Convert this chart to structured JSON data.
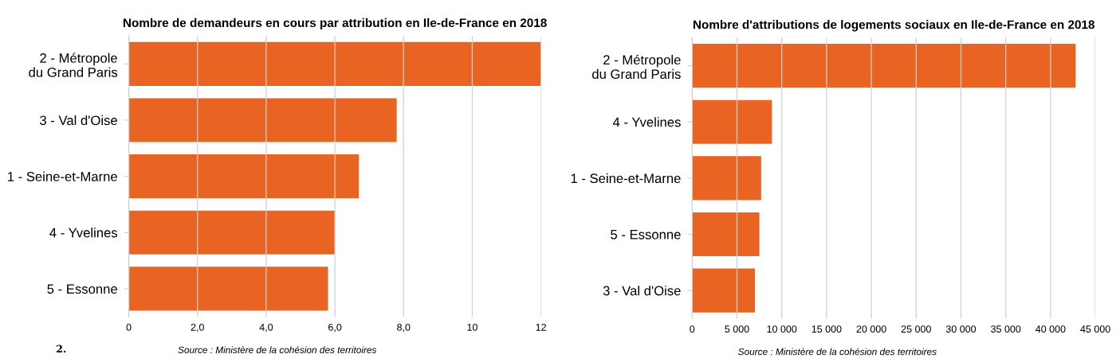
{
  "chart_data": [
    {
      "type": "bar",
      "orientation": "horizontal",
      "title": "Nombre de demandeurs en cours par attribution en Ile-de-France en 2018",
      "categories": [
        "2 - Métropole\ndu Grand Paris",
        "3 - Val d'Oise",
        "1 - Seine-et-Marne",
        "4 - Yvelines",
        "5 - Essonne"
      ],
      "values": [
        12.0,
        7.8,
        6.7,
        6.0,
        5.8
      ],
      "color": "#e96423",
      "xlim": [
        0,
        12
      ],
      "xticks": [
        0,
        {
          "value": 2,
          "label": "2,0"
        },
        {
          "value": 4,
          "label": "4,0"
        },
        {
          "value": 6,
          "label": "6,0"
        },
        {
          "value": 8,
          "label": "8,0"
        },
        10,
        12
      ],
      "grid": "x",
      "annotations": [
        "Source : Ministère de la cohésion des territoires",
        "2."
      ]
    },
    {
      "type": "bar",
      "orientation": "horizontal",
      "title": "Nombre d'attributions de logements sociaux en Ile-de-France en 2018",
      "categories": [
        "2 - Métropole\ndu Grand Paris",
        "4 - Yvelines",
        "1 - Seine-et-Marne",
        "5 - Essonne",
        "3 - Val d'Oise"
      ],
      "values": [
        42800,
        8900,
        7700,
        7500,
        7000
      ],
      "color": "#e96423",
      "xlim": [
        0,
        45000
      ],
      "xticks": [
        0,
        {
          "value": 5000,
          "label": "5 000"
        },
        {
          "value": 10000,
          "label": "10 000"
        },
        {
          "value": 15000,
          "label": "15 000"
        },
        {
          "value": 20000,
          "label": "20 000"
        },
        {
          "value": 25000,
          "label": "25 000"
        },
        {
          "value": 30000,
          "label": "30 000"
        },
        {
          "value": 35000,
          "label": "35 000"
        },
        {
          "value": 40000,
          "label": "40 000"
        },
        {
          "value": 45000,
          "label": "45 000"
        }
      ],
      "grid": "x",
      "annotations": [
        "Source : Ministère de la cohésion des territoires"
      ]
    }
  ]
}
